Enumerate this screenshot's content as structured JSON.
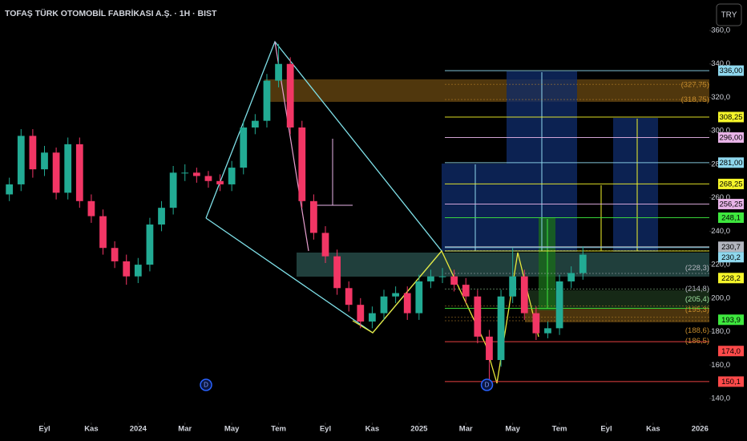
{
  "chart_data": {
    "type": "candlestick",
    "title": "TOFAŞ TÜRK OTOMOBİL FABRİKASI A.Ş. · 1H · BIST",
    "currency": "TRY",
    "up_color": "#22ab94",
    "down_color": "#f23665",
    "ylim": [
      140,
      360
    ],
    "yticks": [
      {
        "value": 360,
        "label": "360,0"
      },
      {
        "value": 340,
        "label": "340,0"
      },
      {
        "value": 320,
        "label": "320,0"
      },
      {
        "value": 300,
        "label": "300,0"
      },
      {
        "value": 280,
        "label": "280,0"
      },
      {
        "value": 260,
        "label": "260,0"
      },
      {
        "value": 240,
        "label": "240,0"
      },
      {
        "value": 220,
        "label": "220,0"
      },
      {
        "value": 200,
        "label": "200,0"
      },
      {
        "value": 180,
        "label": "180,0"
      },
      {
        "value": 160,
        "label": "160,0"
      },
      {
        "value": 140,
        "label": "140,0"
      }
    ],
    "xlim": [
      -1.9,
      28.4
    ],
    "xticks": [
      {
        "value": 0,
        "label": "Eyl"
      },
      {
        "value": 2,
        "label": "Kas"
      },
      {
        "value": 4,
        "label": "2024"
      },
      {
        "value": 6,
        "label": "Mar"
      },
      {
        "value": 8,
        "label": "May"
      },
      {
        "value": 10,
        "label": "Tem"
      },
      {
        "value": 12,
        "label": "Eyl"
      },
      {
        "value": 14,
        "label": "Kas"
      },
      {
        "value": 16,
        "label": "2025"
      },
      {
        "value": 18,
        "label": "Mar"
      },
      {
        "value": 20,
        "label": "May"
      },
      {
        "value": 22,
        "label": "Tem"
      },
      {
        "value": 24,
        "label": "Eyl"
      },
      {
        "value": 26,
        "label": "Kas"
      },
      {
        "value": 28,
        "label": "2026"
      }
    ],
    "x": [
      -1.5,
      -1,
      -0.5,
      0,
      0.5,
      1,
      1.5,
      2,
      2.5,
      3,
      3.5,
      4,
      4.5,
      5,
      5.5,
      6,
      6.5,
      7,
      7.5,
      8,
      8.5,
      9,
      9.5,
      10,
      10.5,
      11,
      11.5,
      12,
      12.5,
      13,
      13.5,
      14,
      14.5,
      15,
      15.5,
      16,
      16.5,
      17,
      17.5,
      18,
      18.5,
      19,
      19.5,
      20,
      20.5,
      21,
      21.5,
      22,
      22.5,
      23
    ],
    "candles": [
      [
        262,
        272,
        258,
        268
      ],
      [
        268,
        301,
        264,
        297
      ],
      [
        297,
        301,
        272,
        277
      ],
      [
        277,
        291,
        273,
        287
      ],
      [
        287,
        290,
        259,
        263
      ],
      [
        263,
        296,
        259,
        292
      ],
      [
        292,
        296,
        254,
        258
      ],
      [
        258,
        262,
        245,
        249
      ],
      [
        249,
        253,
        226,
        230
      ],
      [
        230,
        234,
        218,
        222
      ],
      [
        222,
        226,
        208,
        213
      ],
      [
        213,
        224,
        209,
        220
      ],
      [
        220,
        248,
        216,
        244
      ],
      [
        244,
        258,
        240,
        254
      ],
      [
        254,
        279,
        250,
        275
      ],
      [
        275,
        280,
        270,
        275
      ],
      [
        275,
        278,
        269,
        273
      ],
      [
        273,
        276,
        266,
        270
      ],
      [
        270,
        274,
        264,
        268
      ],
      [
        268,
        282,
        264,
        278
      ],
      [
        278,
        306,
        274,
        302
      ],
      [
        302,
        310,
        298,
        306
      ],
      [
        306,
        334,
        302,
        330
      ],
      [
        330,
        352,
        326,
        340
      ],
      [
        340,
        344,
        298,
        302
      ],
      [
        302,
        306,
        254,
        258
      ],
      [
        258,
        262,
        235,
        239
      ],
      [
        239,
        243,
        221,
        225
      ],
      [
        225,
        229,
        202,
        206
      ],
      [
        206,
        210,
        192,
        196
      ],
      [
        196,
        200,
        182,
        186
      ],
      [
        186,
        195,
        182,
        191
      ],
      [
        191,
        205,
        187,
        201
      ],
      [
        201,
        207,
        197,
        203
      ],
      [
        203,
        207,
        187,
        191
      ],
      [
        191,
        214,
        187,
        210
      ],
      [
        210,
        217,
        206,
        213
      ],
      [
        213,
        218,
        209,
        213
      ],
      [
        213,
        217,
        204,
        208
      ],
      [
        208,
        212,
        197,
        201
      ],
      [
        201,
        205,
        173,
        177
      ],
      [
        177,
        181,
        150,
        163
      ],
      [
        163,
        205,
        159,
        201
      ],
      [
        201,
        230,
        197,
        213
      ],
      [
        213,
        217,
        187,
        191
      ],
      [
        191,
        195,
        175,
        179
      ],
      [
        179,
        186,
        176,
        182
      ],
      [
        182,
        214,
        178,
        210
      ],
      [
        210,
        219,
        206,
        215
      ],
      [
        215,
        231,
        211,
        226
      ]
    ],
    "levels": [
      {
        "value": 336,
        "label": "336,00",
        "color": "#8fd8ee",
        "boxed": true
      },
      {
        "value": 327.75,
        "label": "(327,75)",
        "color": "#c58b2c",
        "boxed": false
      },
      {
        "value": 318.75,
        "label": "(318,75)",
        "color": "#c58b2c",
        "boxed": false
      },
      {
        "value": 308.25,
        "label": "308,25",
        "color": "#f5f52a",
        "boxed": true
      },
      {
        "value": 296,
        "label": "296,00",
        "color": "#e8b4e8",
        "boxed": true
      },
      {
        "value": 281,
        "label": "281,00",
        "color": "#8fd8ee",
        "boxed": true
      },
      {
        "value": 268.25,
        "label": "268,25",
        "color": "#f5f52a",
        "boxed": true
      },
      {
        "value": 256.25,
        "label": "256,25",
        "color": "#e8b4e8",
        "boxed": true
      },
      {
        "value": 248.1,
        "label": "248,1",
        "color": "#3ee83e",
        "boxed": true
      },
      {
        "value": 230.7,
        "label": "230,7",
        "color": "#b2b5be",
        "boxed": true
      },
      {
        "value": 228.3,
        "label": "(228,3)",
        "color": "#b2b5be",
        "boxed": false
      },
      {
        "value": 230.2,
        "label": "230,2",
        "color": "#8fd8ee",
        "boxed": true
      },
      {
        "value": 214.8,
        "label": "(214,8)",
        "color": "#b2b5be",
        "boxed": false
      },
      {
        "value": 228.2,
        "label": "228,2",
        "color": "#f5f52a",
        "boxed": true
      },
      {
        "value": 205.4,
        "label": "(205,4)",
        "color": "#9fe09f",
        "boxed": false
      },
      {
        "value": 195.3,
        "label": "(195,3)",
        "color": "#c58b2c",
        "boxed": false
      },
      {
        "value": 193.9,
        "label": "193,9",
        "color": "#3ee83e",
        "boxed": true
      },
      {
        "value": 188.6,
        "label": "(188,6)",
        "color": "#c58b2c",
        "boxed": false
      },
      {
        "value": 186.5,
        "label": "(186,5)",
        "color": "#c58b2c",
        "boxed": false
      },
      {
        "value": 174,
        "label": "174,0",
        "color": "#ff4a4a",
        "boxed": true
      },
      {
        "value": 150.1,
        "label": "150,1",
        "color": "#ff4a4a",
        "boxed": true
      }
    ],
    "events": [
      {
        "x": 6.9,
        "label": "D"
      },
      {
        "x": 18.9,
        "label": "D"
      }
    ]
  }
}
